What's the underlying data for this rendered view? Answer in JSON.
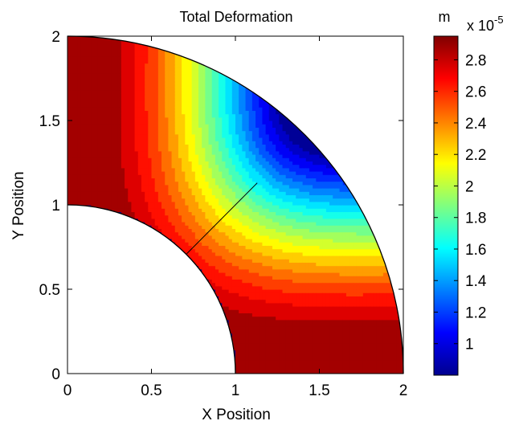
{
  "chart_data": {
    "type": "heatmap",
    "title": "Total Deformation",
    "xlabel": "X Position",
    "ylabel": "Y Position",
    "xlim": [
      0,
      2
    ],
    "ylim": [
      0,
      2
    ],
    "xticks": [
      "0",
      "0.5",
      "1",
      "1.5",
      "2"
    ],
    "yticks": [
      "0",
      "0.5",
      "1",
      "1.5",
      "2"
    ],
    "grid": false,
    "domain": {
      "shape": "quarter-annulus",
      "inner_radius": 1,
      "outer_radius": 2
    },
    "field": {
      "variable": "Total Deformation",
      "min": 8e-06,
      "max": 2.95e-05,
      "colormap": "jet",
      "contour_levels": [
        8e-06,
        9e-06,
        1e-05,
        1.1e-05,
        1.2e-05,
        1.3e-05,
        1.4e-05,
        1.5e-05,
        1.6e-05,
        1.7e-05,
        1.8e-05,
        1.9e-05,
        2e-05,
        2.1e-05,
        2.2e-05,
        2.3e-05,
        2.4e-05,
        2.5e-05,
        2.6e-05,
        2.7e-05,
        2.8e-05,
        2.95e-05
      ],
      "minimum_location": {
        "x": 1.33,
        "y": 1.42
      },
      "maxima_locations": [
        {
          "x": 0,
          "y": 1.3
        },
        {
          "x": 1.3,
          "y": 0
        }
      ]
    },
    "annotation_line": {
      "from": {
        "x": 0.71,
        "y": 0.71
      },
      "to": {
        "x": 1.13,
        "y": 1.13
      }
    },
    "colorbar": {
      "unit": "m",
      "exponent": "x 10",
      "exponent_power": "-5",
      "ticks": [
        "1",
        "1.2",
        "1.4",
        "1.6",
        "1.8",
        "2",
        "2.2",
        "2.4",
        "2.6",
        "2.8"
      ],
      "tick_values": [
        1.0,
        1.2,
        1.4,
        1.6,
        1.8,
        2.0,
        2.2,
        2.4,
        2.6,
        2.8
      ],
      "range": [
        0.8,
        2.95
      ],
      "placement": "right"
    }
  }
}
